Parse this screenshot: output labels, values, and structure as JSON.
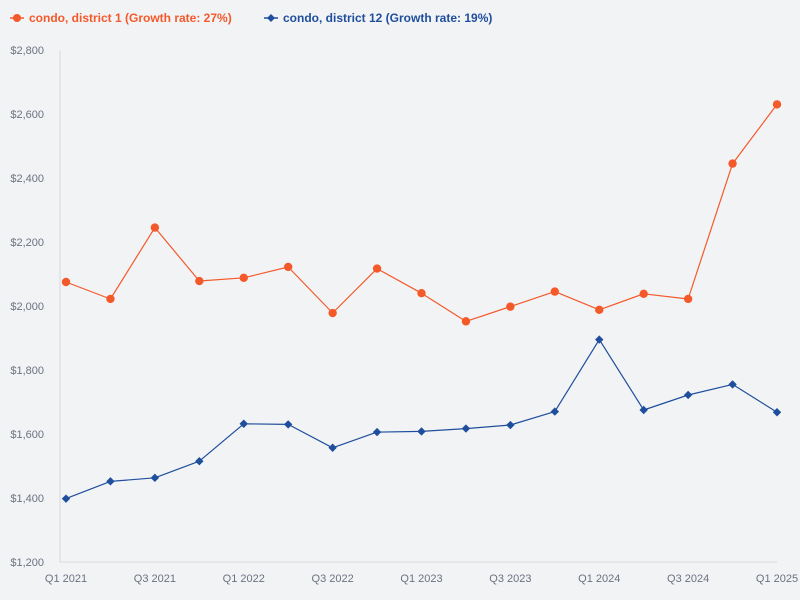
{
  "chart_data": {
    "type": "line",
    "title": "",
    "xlabel": "",
    "ylabel": "",
    "ylim": [
      1200,
      2800
    ],
    "yticks": [
      1200,
      1400,
      1600,
      1800,
      2000,
      2200,
      2400,
      2600,
      2800
    ],
    "ytick_labels": [
      "$1,200",
      "$1,400",
      "$1,600",
      "$1,800",
      "$2,000",
      "$2,200",
      "$2,400",
      "$2,600",
      "$2,800"
    ],
    "categories": [
      "Q1 2021",
      "Q2 2021",
      "Q3 2021",
      "Q4 2021",
      "Q1 2022",
      "Q2 2022",
      "Q3 2022",
      "Q4 2022",
      "Q1 2023",
      "Q2 2023",
      "Q3 2023",
      "Q4 2023",
      "Q1 2024",
      "Q2 2024",
      "Q3 2024",
      "Q4 2024",
      "Q1 2025"
    ],
    "xtick_labels": [
      "Q1 2021",
      "Q3 2021",
      "Q1 2022",
      "Q3 2022",
      "Q1 2023",
      "Q3 2023",
      "Q1 2024",
      "Q3 2024",
      "Q1 2025"
    ],
    "xtick_indices": [
      0,
      2,
      4,
      6,
      8,
      10,
      12,
      14,
      16
    ],
    "legend_position": "top-left",
    "grid": false,
    "series": [
      {
        "name": "condo, district 1 (Growth rate: 27%)",
        "color": "#f4592a",
        "marker": "circle",
        "values": [
          2075,
          2022,
          2245,
          2078,
          2088,
          2122,
          1978,
          2117,
          2040,
          1952,
          1998,
          2045,
          1988,
          2038,
          2022,
          2445,
          2630
        ]
      },
      {
        "name": "condo, district 12 (Growth rate: 19%)",
        "color": "#1f4e9c",
        "marker": "diamond",
        "values": [
          1398,
          1452,
          1463,
          1515,
          1632,
          1630,
          1557,
          1606,
          1608,
          1617,
          1628,
          1670,
          1895,
          1675,
          1722,
          1755,
          1668
        ]
      }
    ]
  }
}
